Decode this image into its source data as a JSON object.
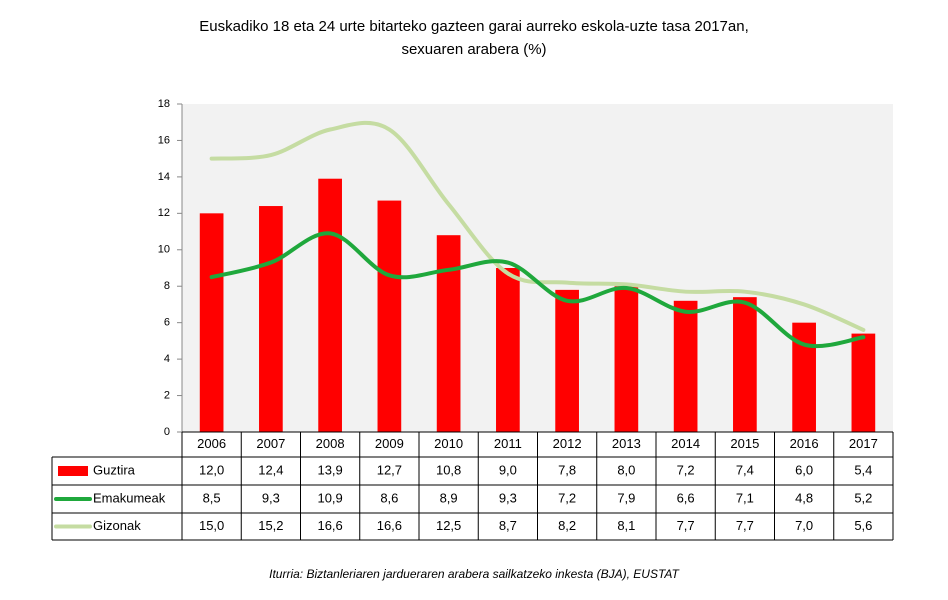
{
  "chart_data": {
    "type": "bar",
    "title": [
      "Euskadiko 18 eta 24 urte bitarteko gazteen garai aurreko eskola-uzte tasa 2017an,",
      "sexuaren arabera (%)"
    ],
    "categories": [
      "2006",
      "2007",
      "2008",
      "2009",
      "2010",
      "2011",
      "2012",
      "2013",
      "2014",
      "2015",
      "2016",
      "2017"
    ],
    "series": [
      {
        "name": "Guztira",
        "type": "bar",
        "color": "#ff0000",
        "values": [
          12.0,
          12.4,
          13.9,
          12.7,
          10.8,
          9.0,
          7.8,
          8.0,
          7.2,
          7.4,
          6.0,
          5.4
        ],
        "value_labels": [
          "12,0",
          "12,4",
          "13,9",
          "12,7",
          "10,8",
          "9,0",
          "7,8",
          "8,0",
          "7,2",
          "7,4",
          "6,0",
          "5,4"
        ]
      },
      {
        "name": "Emakumeak",
        "type": "line",
        "color": "#1fa83c",
        "values": [
          8.5,
          9.3,
          10.9,
          8.6,
          8.9,
          9.3,
          7.2,
          7.9,
          6.6,
          7.1,
          4.8,
          5.2
        ],
        "value_labels": [
          "8,5",
          "9,3",
          "10,9",
          "8,6",
          "8,9",
          "9,3",
          "7,2",
          "7,9",
          "6,6",
          "7,1",
          "4,8",
          "5,2"
        ]
      },
      {
        "name": "Gizonak",
        "type": "line",
        "color": "#c5dca2",
        "values": [
          15.0,
          15.2,
          16.6,
          16.6,
          12.5,
          8.7,
          8.2,
          8.1,
          7.7,
          7.7,
          7.0,
          5.6
        ],
        "value_labels": [
          "15,0",
          "15,2",
          "16,6",
          "16,6",
          "12,5",
          "8,7",
          "8,2",
          "8,1",
          "7,7",
          "7,7",
          "7,0",
          "5,6"
        ]
      }
    ],
    "ylim": [
      0,
      18
    ],
    "yticks": [
      0,
      2,
      4,
      6,
      8,
      10,
      12,
      14,
      16,
      18
    ],
    "grid": false,
    "source": "Iturria: Biztanleriaren jardueraren arabera sailkatzeko inkesta (BJA), EUSTAT"
  }
}
